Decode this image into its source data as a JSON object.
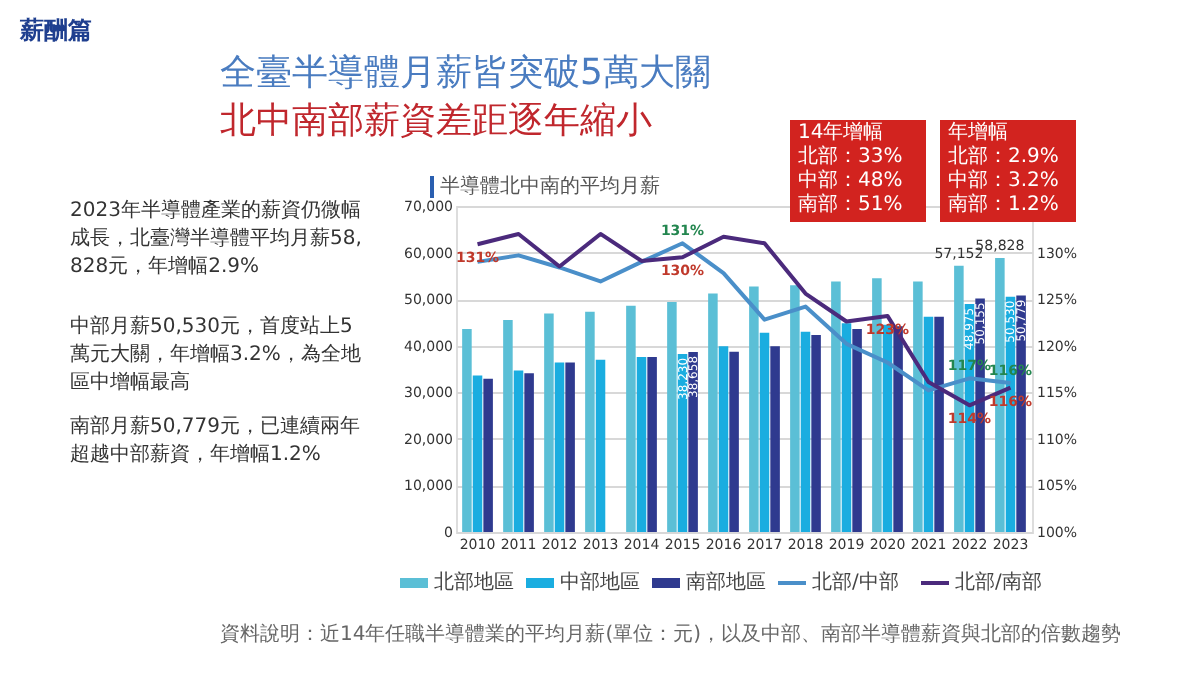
{
  "chart_data": {
    "type": "bar",
    "title": "全臺半導體月薪皆突破5萬大關",
    "subtitle": "北中南部薪資差距逐年縮小",
    "categories": [
      "2010",
      "2011",
      "2012",
      "2013",
      "2014",
      "2015",
      "2016",
      "2017",
      "2018",
      "2019",
      "2020",
      "2021",
      "2022",
      "2023"
    ],
    "series": [
      {
        "name": "北部地區",
        "color": "#5bbfd6",
        "values": [
          43600,
          45500,
          46900,
          47300,
          48600,
          49400,
          51200,
          52700,
          53000,
          53800,
          54500,
          53800,
          57152,
          58828
        ],
        "value_labels": [
          null,
          null,
          null,
          null,
          null,
          null,
          null,
          null,
          null,
          null,
          null,
          null,
          "57,152",
          "58,828"
        ]
      },
      {
        "name": "中部地區",
        "color": "#1aade0",
        "values": [
          33600,
          34700,
          36400,
          37000,
          37600,
          38230,
          39900,
          42800,
          43000,
          44800,
          44500,
          46200,
          48975,
          50530
        ],
        "value_labels": [
          null,
          null,
          null,
          null,
          null,
          "38,230",
          null,
          null,
          null,
          null,
          null,
          null,
          "48,975",
          "50,530"
        ]
      },
      {
        "name": "南部地區",
        "color": "#2f3a8f",
        "values": [
          32900,
          34100,
          36400,
          null,
          37600,
          38658,
          38700,
          39900,
          42300,
          43600,
          44200,
          46200,
          50155,
          50779
        ],
        "value_labels": [
          null,
          null,
          null,
          null,
          null,
          "38,658",
          null,
          null,
          null,
          null,
          null,
          null,
          "50,155",
          "50,779"
        ]
      },
      {
        "name": "北部/中部",
        "type": "line",
        "axis": "y2",
        "color": "#4a8fc9",
        "values": [
          129.0,
          129.7,
          128.4,
          126.9,
          129.0,
          131.0,
          127.8,
          122.8,
          124.2,
          120.2,
          118.2,
          115.2,
          116.5,
          116.0
        ],
        "value_labels": [
          null,
          null,
          null,
          null,
          null,
          "131%",
          null,
          null,
          null,
          null,
          null,
          null,
          "117%",
          "116%"
        ]
      },
      {
        "name": "北部/南部",
        "type": "line",
        "axis": "y2",
        "color": "#4b2a7c",
        "values": [
          130.9,
          132.0,
          128.5,
          132.0,
          129.1,
          129.5,
          131.7,
          131.0,
          125.6,
          122.6,
          123.2,
          116.1,
          113.6,
          115.5
        ],
        "value_labels": [
          "131%",
          null,
          null,
          null,
          null,
          "130%",
          null,
          null,
          null,
          null,
          "123%",
          null,
          "114%",
          "116%"
        ]
      }
    ],
    "ylim": [
      0,
      70000
    ],
    "yticks": [
      {
        "value": 0,
        "label": "0"
      },
      {
        "value": 10000,
        "label": "10,000"
      },
      {
        "value": 20000,
        "label": "20,000"
      },
      {
        "value": 30000,
        "label": "30,000"
      },
      {
        "value": 40000,
        "label": "40,000"
      },
      {
        "value": 50000,
        "label": "50,000"
      },
      {
        "value": 60000,
        "label": "60,000"
      },
      {
        "value": 70000,
        "label": "70,000"
      }
    ],
    "y2lim": [
      100,
      135
    ],
    "y2ticks": [
      {
        "value": 100,
        "label": "100%"
      },
      {
        "value": 105,
        "label": "105%"
      },
      {
        "value": 110,
        "label": "110%"
      },
      {
        "value": 115,
        "label": "115%"
      },
      {
        "value": 120,
        "label": "120%"
      },
      {
        "value": 125,
        "label": "125%"
      },
      {
        "value": 130,
        "label": "130%"
      }
    ],
    "grid": "y",
    "legend": "bottom",
    "marker": "none",
    "line_style": "solid",
    "annotations": [
      "薪酬篇",
      "半導體北中南的平均月薪",
      "2023年半導體產業的薪資仍微幅成長，北臺灣半導體平均月薪58,828元，年增幅2.9%",
      "中部月薪50,530元，首度站上5萬元大關，年增幅3.2%，為全地區中增幅最高",
      "南部月薪50,779元，已連續兩年超越中部薪資，年增幅1.2%",
      "14年增幅",
      "北部：33%",
      "中部：48%",
      "南部：51%",
      "年增幅",
      "北部：2.9%",
      "中部：3.2%",
      "南部：1.2%",
      "資料說明：近14年任職半導體業的平均月薪(單位：元)，以及中部、南部半導體薪資與北部的倍數趨勢"
    ]
  }
}
